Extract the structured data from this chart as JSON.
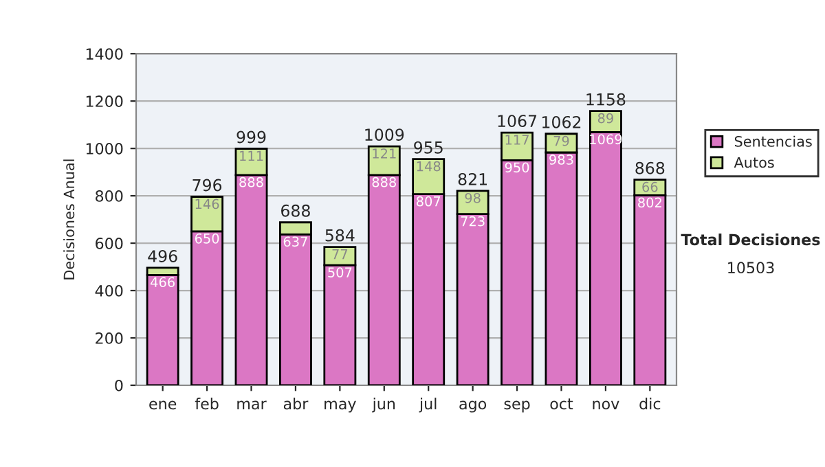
{
  "chart_data": {
    "type": "bar",
    "stacked": true,
    "ylabel": "Decisiones Anual",
    "categories": [
      "ene",
      "feb",
      "mar",
      "abr",
      "may",
      "jun",
      "jul",
      "ago",
      "sep",
      "oct",
      "nov",
      "dic"
    ],
    "series": [
      {
        "name": "Sentencias",
        "color": "#db77c4",
        "values": [
          466,
          650,
          888,
          637,
          507,
          888,
          807,
          723,
          950,
          983,
          1069,
          802
        ],
        "value_labels": [
          "466",
          "650",
          "888",
          "637",
          "507",
          "888",
          "807",
          "723",
          "950",
          "983",
          "1069",
          "802"
        ]
      },
      {
        "name": "Autos",
        "color": "#cfe89a",
        "values": [
          30,
          146,
          111,
          51,
          77,
          121,
          148,
          98,
          117,
          79,
          89,
          66
        ],
        "value_labels": [
          null,
          "146",
          "111",
          null,
          "77",
          "121",
          "148",
          "98",
          "117",
          "79",
          "89",
          "66"
        ]
      }
    ],
    "totals": [
      "496",
      "796",
      "999",
      "688",
      "584",
      "1009",
      "955",
      "821",
      "1067",
      "1062",
      "1158",
      "868"
    ],
    "ylim": [
      0,
      1400
    ],
    "yticks": [
      0,
      200,
      400,
      600,
      800,
      1000,
      1200,
      1400
    ],
    "grid": "y",
    "legend": "right",
    "annotations": [
      "Total Decisiones",
      "10503"
    ]
  }
}
